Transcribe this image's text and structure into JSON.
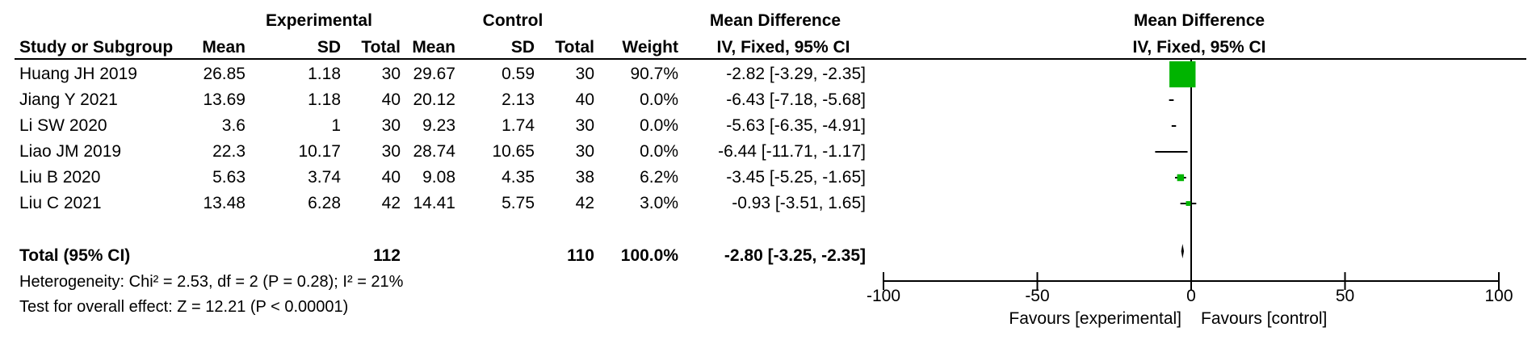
{
  "header": {
    "group_experimental": "Experimental",
    "group_control": "Control",
    "effect_header_top": "Mean Difference",
    "effect_header_bottom": "IV, Fixed, 95% CI",
    "plot_header_top": "Mean Difference",
    "plot_header_bottom": "IV, Fixed, 95% CI",
    "col_study": "Study or Subgroup",
    "col_mean": "Mean",
    "col_sd": "SD",
    "col_total": "Total",
    "col_weight": "Weight"
  },
  "studies": [
    {
      "name": "Huang JH 2019",
      "e_mean": "26.85",
      "e_sd": "1.18",
      "e_total": "30",
      "c_mean": "29.67",
      "c_sd": "0.59",
      "c_total": "30",
      "weight": "90.7%",
      "ci": "-2.82 [-3.29, -2.35]"
    },
    {
      "name": "Jiang Y 2021",
      "e_mean": "13.69",
      "e_sd": "1.18",
      "e_total": "40",
      "c_mean": "20.12",
      "c_sd": "2.13",
      "c_total": "40",
      "weight": "0.0%",
      "ci": "-6.43 [-7.18, -5.68]"
    },
    {
      "name": "Li SW 2020",
      "e_mean": "3.6",
      "e_sd": "1",
      "e_total": "30",
      "c_mean": "9.23",
      "c_sd": "1.74",
      "c_total": "30",
      "weight": "0.0%",
      "ci": "-5.63 [-6.35, -4.91]"
    },
    {
      "name": "Liao JM 2019",
      "e_mean": "22.3",
      "e_sd": "10.17",
      "e_total": "30",
      "c_mean": "28.74",
      "c_sd": "10.65",
      "c_total": "30",
      "weight": "0.0%",
      "ci": "-6.44 [-11.71, -1.17]"
    },
    {
      "name": "Liu B 2020",
      "e_mean": "5.63",
      "e_sd": "3.74",
      "e_total": "40",
      "c_mean": "9.08",
      "c_sd": "4.35",
      "c_total": "38",
      "weight": "6.2%",
      "ci": "-3.45 [-5.25, -1.65]"
    },
    {
      "name": "Liu C 2021",
      "e_mean": "13.48",
      "e_sd": "6.28",
      "e_total": "42",
      "c_mean": "14.41",
      "c_sd": "5.75",
      "c_total": "42",
      "weight": "3.0%",
      "ci": "-0.93 [-3.51, 1.65]"
    }
  ],
  "total": {
    "label": "Total (95% CI)",
    "e_total": "112",
    "c_total": "110",
    "weight": "100.0%",
    "ci": "-2.80 [-3.25, -2.35]"
  },
  "footer": {
    "heterogeneity": "Heterogeneity: Chi² = 2.53, df = 2 (P = 0.28); I² = 21%",
    "overall": "Test for overall effect: Z = 12.21 (P < 0.00001)"
  },
  "chart_data": {
    "type": "scatter",
    "title": "",
    "xlim": [
      -100,
      100
    ],
    "x_ticks": [
      "-100",
      "-50",
      "0",
      "50",
      "100"
    ],
    "favours_left": "Favours [experimental]",
    "favours_right": "Favours [control]",
    "marker_color": "#00b400",
    "studies": [
      {
        "name": "Huang JH 2019",
        "md": -2.82,
        "lo": -3.29,
        "hi": -2.35,
        "weight": 90.7
      },
      {
        "name": "Jiang Y 2021",
        "md": -6.43,
        "lo": -7.18,
        "hi": -5.68,
        "weight": 0.0
      },
      {
        "name": "Li SW 2020",
        "md": -5.63,
        "lo": -6.35,
        "hi": -4.91,
        "weight": 0.0
      },
      {
        "name": "Liao JM 2019",
        "md": -6.44,
        "lo": -11.71,
        "hi": -1.17,
        "weight": 0.0
      },
      {
        "name": "Liu B 2020",
        "md": -3.45,
        "lo": -5.25,
        "hi": -1.65,
        "weight": 6.2
      },
      {
        "name": "Liu C 2021",
        "md": -0.93,
        "lo": -3.51,
        "hi": 1.65,
        "weight": 3.0
      }
    ],
    "pooled": {
      "md": -2.8,
      "lo": -3.25,
      "hi": -2.35
    }
  }
}
